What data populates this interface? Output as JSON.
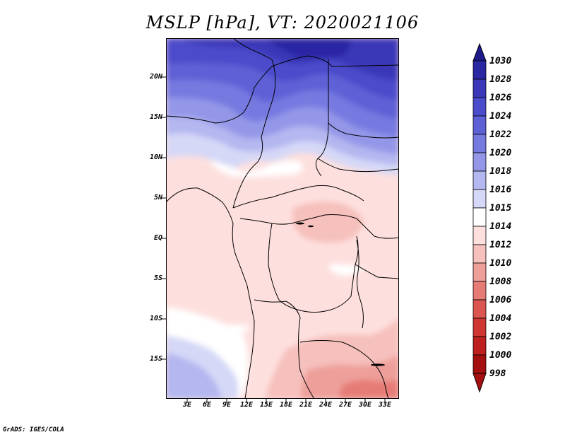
{
  "title": "MSLP [hPa], VT: 2020021106",
  "footer": "GrADS: IGES/COLA",
  "colors": {
    "c1030": "#1e1a8c",
    "c1028": "#2a27a3",
    "c1026": "#3a38b8",
    "c1024": "#4b4ccb",
    "c1022": "#5e61d6",
    "c1020": "#7679e0",
    "c1018": "#9497e8",
    "c1016": "#b4b7f0",
    "c1015": "#d6d8f7",
    "c1014": "#ffffff",
    "c1012": "#fde0de",
    "c1010": "#f6c0bc",
    "c1008": "#ee9f9a",
    "c1006": "#e67b76",
    "c1004": "#dc5651",
    "c1002": "#cf3531",
    "c1000": "#bd201f",
    "c998": "#a3100f"
  },
  "map": {
    "lat_labels": [
      "20N",
      "15N",
      "10N",
      "5N",
      "EQ",
      "5S",
      "10S",
      "15S"
    ],
    "lon_labels": [
      "3E",
      "6E",
      "9E",
      "12E",
      "15E",
      "18E",
      "21E",
      "24E",
      "27E",
      "30E",
      "33E"
    ]
  },
  "colorbar": {
    "labels": [
      "1030",
      "1028",
      "1026",
      "1024",
      "1022",
      "1020",
      "1018",
      "1016",
      "1015",
      "1014",
      "1012",
      "1010",
      "1008",
      "1006",
      "1004",
      "1002",
      "1000",
      "998"
    ]
  }
}
